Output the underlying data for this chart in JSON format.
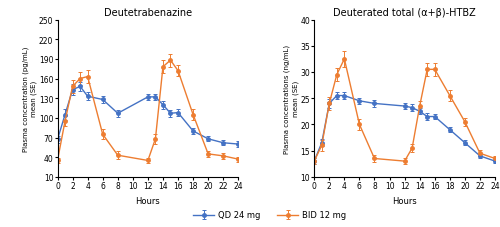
{
  "left_title": "Deutetrabenazine",
  "right_title": "Deuterated total (α+β)-HTBZ",
  "xlabel": "Hours",
  "left_ylabel": "Plasma concentration (pg/mL)\nmean (SE)",
  "right_ylabel": "Plasma concentrations (ng/mL)\nmean (SE)",
  "left_ylim": [
    10,
    250
  ],
  "right_ylim": [
    10,
    40
  ],
  "left_yticks": [
    10,
    40,
    70,
    100,
    130,
    160,
    190,
    220,
    250
  ],
  "right_yticks": [
    10,
    15,
    20,
    25,
    30,
    35,
    40
  ],
  "xticks": [
    0,
    2,
    4,
    6,
    8,
    10,
    12,
    14,
    16,
    18,
    20,
    22,
    24
  ],
  "qd_color": "#4472C4",
  "bid_color": "#ED7D31",
  "left_qd_x": [
    0,
    1,
    2,
    3,
    4,
    6,
    8,
    12,
    13,
    14,
    15,
    16,
    18,
    20,
    22,
    24
  ],
  "left_qd_y": [
    67,
    105,
    143,
    148,
    133,
    128,
    107,
    132,
    132,
    120,
    107,
    108,
    80,
    68,
    62,
    60
  ],
  "left_qd_se": [
    5,
    8,
    8,
    7,
    6,
    6,
    5,
    5,
    5,
    6,
    5,
    5,
    5,
    4,
    4,
    4
  ],
  "left_bid_x": [
    0,
    1,
    2,
    3,
    4,
    6,
    8,
    12,
    13,
    14,
    15,
    16,
    18,
    20,
    22,
    24
  ],
  "left_bid_y": [
    35,
    95,
    148,
    160,
    163,
    75,
    43,
    35,
    68,
    178,
    188,
    172,
    105,
    45,
    42,
    37
  ],
  "left_bid_se": [
    4,
    8,
    10,
    10,
    10,
    8,
    6,
    4,
    8,
    10,
    10,
    8,
    8,
    5,
    5,
    4
  ],
  "right_qd_x": [
    0,
    1,
    2,
    3,
    4,
    6,
    8,
    12,
    13,
    14,
    15,
    16,
    18,
    20,
    22,
    24
  ],
  "right_qd_y": [
    13.0,
    16.5,
    24.0,
    25.5,
    25.5,
    24.5,
    24.0,
    23.5,
    23.2,
    22.5,
    21.5,
    21.5,
    19.0,
    16.5,
    14.0,
    13.0
  ],
  "right_qd_se": [
    0.5,
    0.7,
    0.8,
    0.7,
    0.7,
    0.6,
    0.6,
    0.6,
    0.6,
    0.6,
    0.6,
    0.5,
    0.5,
    0.5,
    0.4,
    0.4
  ],
  "right_bid_x": [
    0,
    1,
    2,
    3,
    4,
    6,
    8,
    12,
    13,
    14,
    15,
    16,
    18,
    20,
    22,
    24
  ],
  "right_bid_y": [
    13.0,
    16.0,
    24.0,
    29.5,
    32.5,
    20.0,
    13.5,
    13.0,
    15.5,
    23.5,
    30.5,
    30.5,
    25.5,
    20.5,
    14.5,
    13.5
  ],
  "right_bid_se": [
    0.5,
    1.0,
    1.2,
    1.3,
    1.5,
    1.0,
    0.6,
    0.5,
    0.8,
    1.0,
    1.3,
    1.2,
    1.0,
    0.8,
    0.6,
    0.5
  ],
  "legend_qd": "QD 24 mg",
  "legend_bid": "BID 12 mg"
}
